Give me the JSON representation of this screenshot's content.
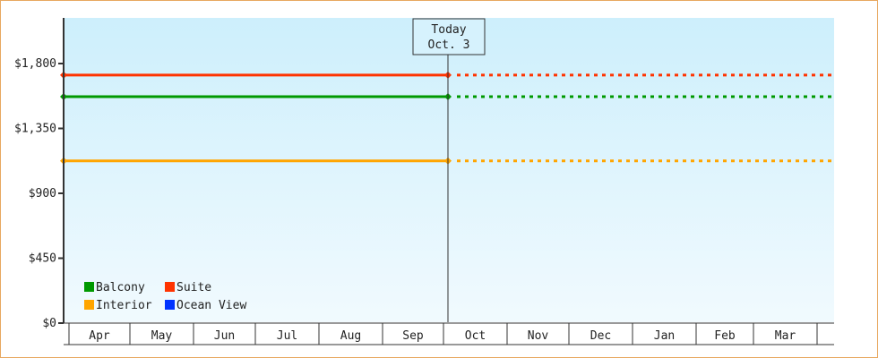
{
  "chart_data": {
    "type": "line",
    "categories": [
      "Apr",
      "May",
      "Jun",
      "Jul",
      "Aug",
      "Sep",
      "Oct",
      "Nov",
      "Dec",
      "Jan",
      "Feb",
      "Mar"
    ],
    "y_ticks": [
      "$0",
      "$450",
      "$900",
      "$1,350",
      "$1,800"
    ],
    "y_tick_values": [
      0,
      450,
      900,
      1350,
      1800
    ],
    "ylim": [
      0,
      1800
    ],
    "today_marker": {
      "line1": "Today",
      "line2": "Oct. 3"
    },
    "series": [
      {
        "name": "Suite",
        "color": "#ff3300",
        "value": 1720
      },
      {
        "name": "Balcony",
        "color": "#009900",
        "value": 1570
      },
      {
        "name": "Interior",
        "color": "#ffa500",
        "value": 1125
      },
      {
        "name": "Ocean View",
        "color": "#0033ff",
        "value": null
      }
    ],
    "note_style": "solid through today, dotted projection after",
    "legend_position": "bottom-left",
    "grid": false
  }
}
